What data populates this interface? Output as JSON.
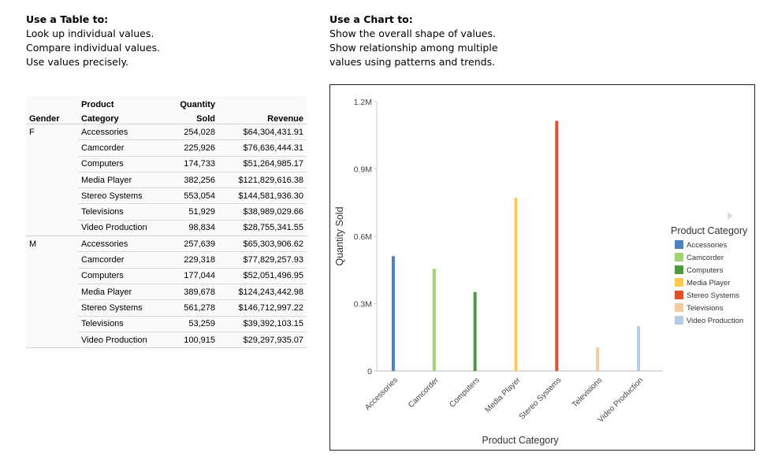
{
  "intro_left": {
    "title": "Use a Table to:",
    "lines": [
      "Look up individual values.",
      "Compare individual values.",
      "Use values precisely."
    ]
  },
  "intro_right": {
    "title": "Use a Chart to:",
    "lines": [
      "Show the overall shape of values.",
      "Show relationship among multiple",
      "values using patterns and trends."
    ]
  },
  "table": {
    "headers": {
      "gender": "Gender",
      "category_top": "Product",
      "category": "Category",
      "qty_top": "Quantity",
      "qty": "Sold",
      "revenue": "Revenue"
    },
    "groups": [
      {
        "gender": "F",
        "rows": [
          [
            "Accessories",
            "254,028",
            "$64,304,431.91"
          ],
          [
            "Camcorder",
            "225,926",
            "$76,636,444.31"
          ],
          [
            "Computers",
            "174,733",
            "$51,264,985.17"
          ],
          [
            "Media Player",
            "382,256",
            "$121,829,616.38"
          ],
          [
            "Stereo Systems",
            "553,054",
            "$144,581,936.30"
          ],
          [
            "Televisions",
            "51,929",
            "$38,989,029.66"
          ],
          [
            "Video Production",
            "98,834",
            "$28,755,341.55"
          ]
        ]
      },
      {
        "gender": "M",
        "rows": [
          [
            "Accessories",
            "257,639",
            "$65,303,906.62"
          ],
          [
            "Camcorder",
            "229,318",
            "$77,829,257.93"
          ],
          [
            "Computers",
            "177,044",
            "$52,051,496.95"
          ],
          [
            "Media Player",
            "389,678",
            "$124,243,442.98"
          ],
          [
            "Stereo Systems",
            "561,278",
            "$146,712,997.22"
          ],
          [
            "Televisions",
            "53,259",
            "$39,392,103.15"
          ],
          [
            "Video Production",
            "100,915",
            "$29,297,935.07"
          ]
        ]
      }
    ]
  },
  "chart_data": {
    "type": "bar",
    "xlabel": "Product Category",
    "ylabel": "Quantity Sold",
    "ylim": [
      0,
      1200000
    ],
    "yticks": [
      {
        "v": 0,
        "label": "0"
      },
      {
        "v": 300000,
        "label": "0.3M"
      },
      {
        "v": 600000,
        "label": "0.6M"
      },
      {
        "v": 900000,
        "label": "0.9M"
      },
      {
        "v": 1200000,
        "label": "1.2M"
      }
    ],
    "categories": [
      "Accessories",
      "Camcorder",
      "Computers",
      "Media Player",
      "Stereo Systems",
      "Televisions",
      "Video Production"
    ],
    "values": [
      511667,
      455244,
      351777,
      771934,
      1114332,
      105188,
      199749
    ],
    "colors": [
      "#4e81bd",
      "#9fd373",
      "#4c9a3c",
      "#fcca52",
      "#e0502a",
      "#f0cca0",
      "#b6cce4"
    ],
    "legend": {
      "title": "Product Category",
      "position": "right"
    },
    "grid": false
  }
}
